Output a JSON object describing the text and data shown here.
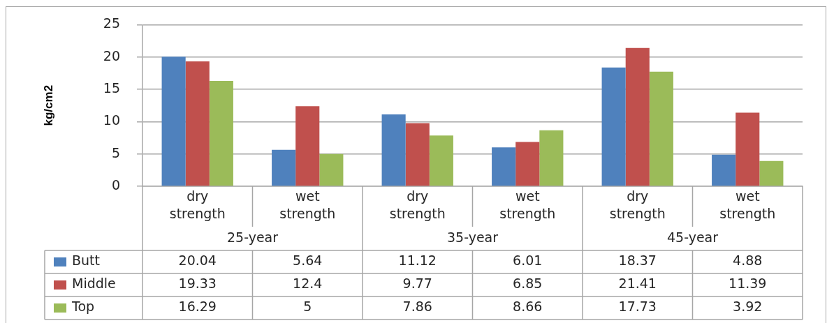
{
  "chart_data": {
    "type": "bar",
    "ylabel": "kg/cm2",
    "categories": [
      "dry strength",
      "wet strength",
      "dry strength",
      "wet strength",
      "dry strength",
      "wet strength"
    ],
    "annotations": [
      "25-year",
      "35-year",
      "45-year"
    ],
    "series": [
      {
        "name": "Butt",
        "color": "#4f81bd",
        "values": [
          20.04,
          5.64,
          11.12,
          6.01,
          18.37,
          4.88
        ]
      },
      {
        "name": "Middle",
        "color": "#c0504d",
        "values": [
          19.33,
          12.4,
          9.77,
          6.85,
          21.41,
          11.39
        ]
      },
      {
        "name": "Top",
        "color": "#9bbb59",
        "values": [
          16.29,
          5,
          7.86,
          8.66,
          17.73,
          3.92
        ]
      }
    ],
    "ylim": [
      0,
      25
    ],
    "yticks": [
      0,
      5,
      10,
      15,
      20,
      25
    ],
    "grid": "y",
    "legend": "bottom",
    "data_labels": true
  }
}
